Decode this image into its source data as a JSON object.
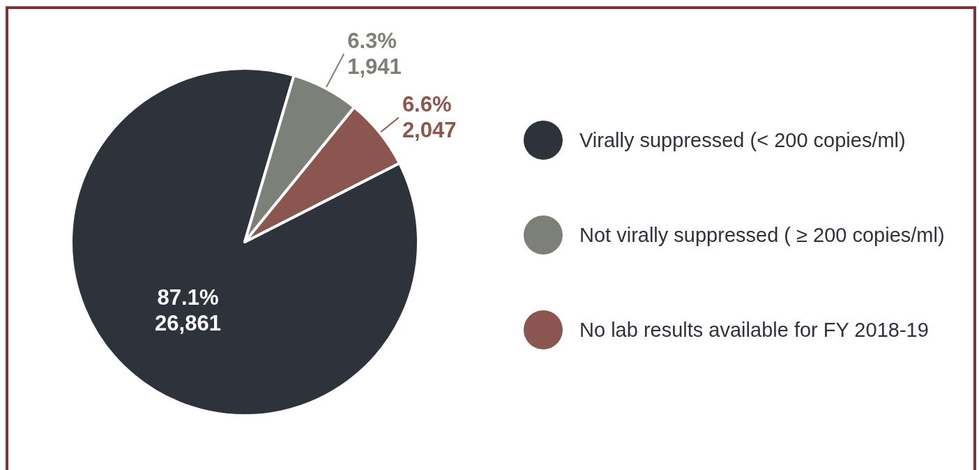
{
  "chart_data": {
    "type": "pie",
    "categories": [
      "Virally suppressed (< 200 copies/ml)",
      "Not virally suppressed ( ≥ 200 copies/ml)",
      "No lab results available for FY 2018-19"
    ],
    "values": [
      26861,
      1941,
      2047
    ],
    "colors": [
      "#2e333b",
      "#7d8079",
      "#8b5650"
    ],
    "value_labels": [
      "87.1%\n26,861",
      "6.3%\n1,941",
      "6.6%\n2,047"
    ],
    "legend": "right"
  }
}
